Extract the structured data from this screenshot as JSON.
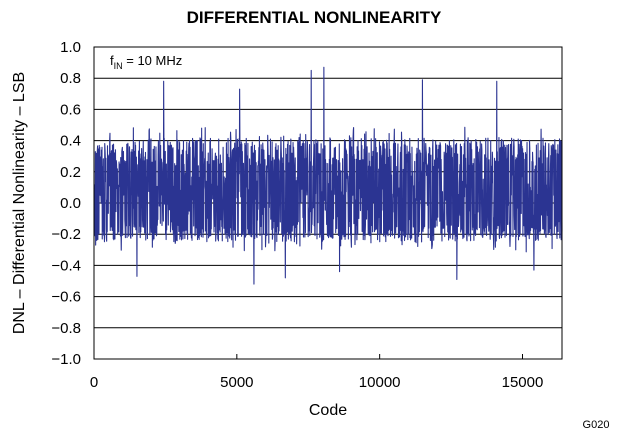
{
  "chart_data": {
    "type": "line",
    "title": "DIFFERENTIAL NONLINEARITY",
    "xlabel": "Code",
    "ylabel": "DNL – Differential Nonlinearity – LSB",
    "xlim": [
      0,
      16383
    ],
    "ylim": [
      -1.0,
      1.0
    ],
    "xticks": [
      0,
      5000,
      10000,
      15000
    ],
    "xtick_labels": [
      "0",
      "5000",
      "10000",
      "15000"
    ],
    "yticks": [
      -1.0,
      -0.8,
      -0.6,
      -0.4,
      -0.2,
      0.0,
      0.2,
      0.4,
      0.6,
      0.8,
      1.0
    ],
    "ytick_labels": [
      "−1.0",
      "−0.8",
      "−0.6",
      "−0.4",
      "−0.2",
      "0.0",
      "0.2",
      "0.4",
      "0.6",
      "0.8",
      "1.0"
    ],
    "grid": "horizontal",
    "annotation": {
      "main": "f",
      "sub": "IN",
      "rest": " = 10 MHz"
    },
    "figure_code": "G020",
    "series_color": "#2b3492",
    "noise_profile": {
      "typical_band": [
        -0.25,
        0.42
      ],
      "max_positive": 0.87,
      "max_negative": -0.52
    },
    "peaks": [
      {
        "x": 2440,
        "y": 0.78
      },
      {
        "x": 5100,
        "y": 0.73
      },
      {
        "x": 7600,
        "y": 0.85
      },
      {
        "x": 8050,
        "y": 0.87
      },
      {
        "x": 11500,
        "y": 0.79
      },
      {
        "x": 14100,
        "y": 0.78
      },
      {
        "x": 1500,
        "y": -0.47
      },
      {
        "x": 5600,
        "y": -0.52
      },
      {
        "x": 6700,
        "y": -0.48
      },
      {
        "x": 8600,
        "y": -0.44
      },
      {
        "x": 12700,
        "y": -0.49
      },
      {
        "x": 15400,
        "y": -0.43
      }
    ]
  }
}
